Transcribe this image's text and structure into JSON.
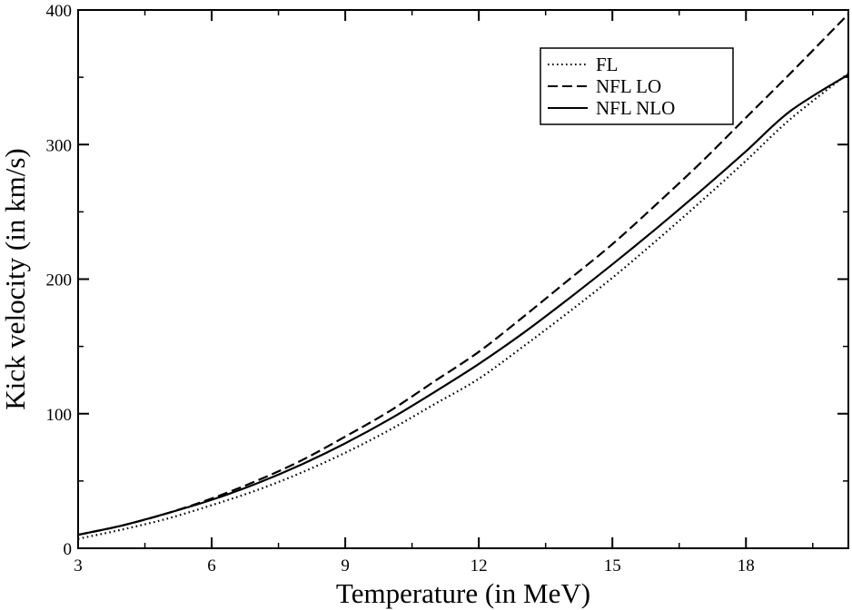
{
  "chart_data": {
    "type": "line",
    "title": "",
    "xlabel": "Temperature (in MeV)",
    "ylabel": "Kick velocity (in km/s)",
    "xlim": [
      3,
      20.3
    ],
    "ylim": [
      0,
      400
    ],
    "xticks": [
      3,
      6,
      9,
      12,
      15,
      18
    ],
    "yticks": [
      0,
      100,
      200,
      300,
      400
    ],
    "grid": false,
    "legend_position": "top-right",
    "series": [
      {
        "name": "FL",
        "style": "dotted",
        "color": "#000000",
        "x": [
          3,
          4,
          5,
          6,
          7,
          8,
          9,
          10,
          11,
          12,
          13,
          14,
          15,
          16,
          17,
          18,
          19,
          20.3
        ],
        "y": [
          7,
          14,
          22,
          32,
          43,
          56,
          71,
          88,
          107,
          126,
          150,
          175,
          201,
          229,
          258,
          288,
          319,
          353
        ]
      },
      {
        "name": "NFL LO",
        "style": "dashed",
        "color": "#000000",
        "x": [
          3,
          4,
          5,
          6,
          7,
          8,
          9,
          10,
          11,
          12,
          13,
          14,
          15,
          16,
          17,
          18,
          19,
          20.3
        ],
        "y": [
          10,
          17,
          26,
          37,
          50,
          65,
          83,
          102,
          124,
          146,
          172,
          199,
          226,
          256,
          287,
          320,
          353,
          397
        ]
      },
      {
        "name": "NFL NLO",
        "style": "solid",
        "color": "#000000",
        "x": [
          3,
          4,
          5,
          6,
          7,
          8,
          9,
          10,
          11,
          12,
          13,
          14,
          15,
          16,
          17,
          18,
          19,
          20.3
        ],
        "y": [
          10,
          17,
          26,
          36,
          48,
          62,
          78,
          96,
          116,
          137,
          160,
          185,
          211,
          238,
          266,
          295,
          325,
          352
        ]
      }
    ]
  }
}
